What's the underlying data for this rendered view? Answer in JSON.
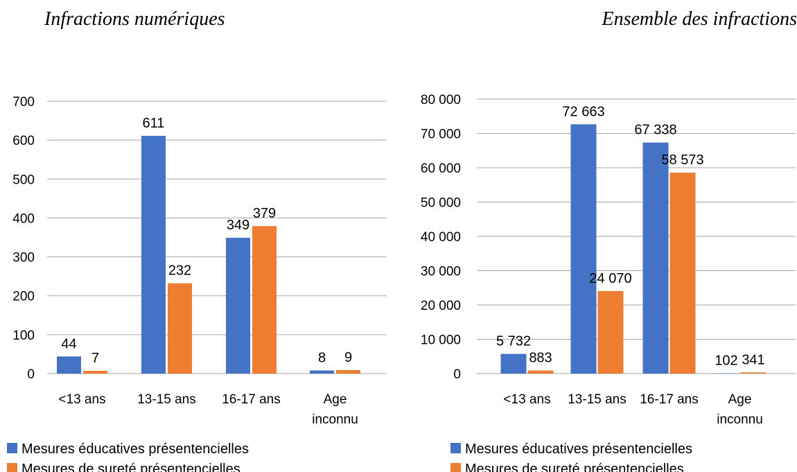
{
  "titles": {
    "left": "Infractions numériques",
    "right": "Ensemble des infractions"
  },
  "colors": {
    "educ": "#4472C4",
    "surete": "#ED7D31",
    "grid": "#A6A6A6"
  },
  "chart_data": [
    {
      "type": "bar",
      "title": "Infractions numériques",
      "categories": [
        [
          "<13 ans"
        ],
        [
          "13-15 ans"
        ],
        [
          "16-17 ans"
        ],
        [
          "Age",
          "inconnu"
        ]
      ],
      "ylim": [
        0,
        700
      ],
      "yticks": [
        0,
        100,
        200,
        300,
        400,
        500,
        600,
        700
      ],
      "ytick_labels": [
        "0",
        "100",
        "200",
        "300",
        "400",
        "500",
        "600",
        "700"
      ],
      "grid": true,
      "legend_position": "bottom",
      "series": [
        {
          "name": "Mesures éducatives présentencielles",
          "values": [
            44,
            611,
            349,
            8
          ],
          "labels": [
            "44",
            "611",
            "349",
            "8"
          ]
        },
        {
          "name": "Mesures de sureté présentencielles",
          "values": [
            7,
            232,
            379,
            9
          ],
          "labels": [
            "7",
            "232",
            "379",
            "9"
          ]
        }
      ]
    },
    {
      "type": "bar",
      "title": "Ensemble des infractions",
      "categories": [
        [
          "<13 ans"
        ],
        [
          "13-15 ans"
        ],
        [
          "16-17 ans"
        ],
        [
          "Age",
          "inconnu"
        ]
      ],
      "ylim": [
        0,
        80000
      ],
      "yticks": [
        0,
        10000,
        20000,
        30000,
        40000,
        50000,
        60000,
        70000,
        80000
      ],
      "ytick_labels": [
        "0",
        "10 000",
        "20 000",
        "30 000",
        "40 000",
        "50 000",
        "60 000",
        "70 000",
        "80 000"
      ],
      "grid": true,
      "legend_position": "bottom",
      "series": [
        {
          "name": "Mesures éducatives présentencielles",
          "values": [
            5732,
            72663,
            67338,
            102
          ],
          "labels": [
            "5 732",
            "72 663",
            "67 338",
            "102"
          ]
        },
        {
          "name": "Mesures de sureté présentencielles",
          "values": [
            883,
            24070,
            58573,
            341
          ],
          "labels": [
            "883",
            "24 070",
            "58 573",
            "341"
          ]
        }
      ]
    }
  ]
}
